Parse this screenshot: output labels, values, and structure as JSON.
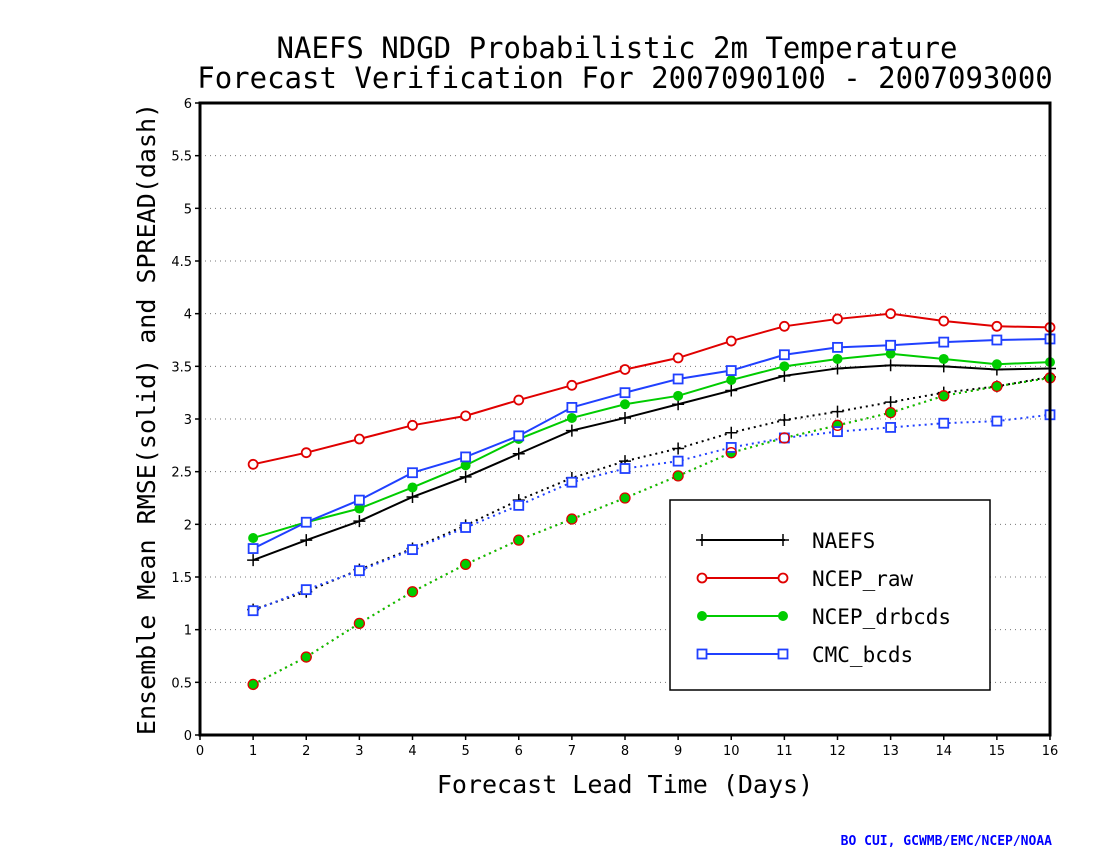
{
  "chart_data": {
    "type": "line",
    "title": "NAEFS NDGD Probabilistic 2m Temperature",
    "subtitle": "Forecast Verification For 2007090100 - 2007093000",
    "xlabel": "Forecast Lead Time (Days)",
    "ylabel": "Ensemble Mean RMSE(solid) and SPREAD(dash)",
    "xlim": [
      0,
      16
    ],
    "ylim": [
      0,
      6
    ],
    "xticks": [
      "0",
      "1",
      "2",
      "3",
      "4",
      "5",
      "6",
      "7",
      "8",
      "9",
      "10",
      "11",
      "12",
      "13",
      "14",
      "15",
      "16"
    ],
    "yticks": [
      "0",
      "0.5",
      "1",
      "1.5",
      "2",
      "2.5",
      "3",
      "3.5",
      "4",
      "4.5",
      "5",
      "5.5",
      "6"
    ],
    "grid": true,
    "legend_position": "lower-right",
    "x": [
      1,
      2,
      3,
      4,
      5,
      6,
      7,
      8,
      9,
      10,
      11,
      12,
      13,
      14,
      15,
      16
    ],
    "series": [
      {
        "name": "NAEFS",
        "color": "#000000",
        "marker": "plus",
        "rmse": [
          1.66,
          1.85,
          2.03,
          2.26,
          2.45,
          2.67,
          2.89,
          3.01,
          3.14,
          3.27,
          3.41,
          3.48,
          3.51,
          3.5,
          3.47,
          3.48
        ],
        "spread": [
          1.19,
          1.36,
          1.57,
          1.77,
          1.99,
          2.23,
          2.44,
          2.6,
          2.72,
          2.87,
          2.99,
          3.07,
          3.16,
          3.25,
          3.31,
          3.4
        ]
      },
      {
        "name": "NCEP_raw",
        "color": "#e00000",
        "marker": "open-circle",
        "rmse": [
          2.57,
          2.68,
          2.81,
          2.94,
          3.03,
          3.18,
          3.32,
          3.47,
          3.58,
          3.74,
          3.88,
          3.95,
          4.0,
          3.93,
          3.88,
          3.87
        ],
        "spread": [
          0.48,
          0.74,
          1.06,
          1.36,
          1.62,
          1.85,
          2.05,
          2.25,
          2.46,
          2.68,
          2.82,
          2.94,
          3.06,
          3.22,
          3.31,
          3.39
        ]
      },
      {
        "name": "NCEP_drbcds",
        "color": "#00cc00",
        "marker": "filled-circle",
        "rmse": [
          1.87,
          2.02,
          2.15,
          2.35,
          2.56,
          2.81,
          3.01,
          3.14,
          3.22,
          3.37,
          3.5,
          3.57,
          3.62,
          3.57,
          3.52,
          3.54
        ],
        "spread": [
          0.48,
          0.74,
          1.06,
          1.36,
          1.62,
          1.85,
          2.05,
          2.25,
          2.46,
          2.68,
          2.82,
          2.94,
          3.06,
          3.22,
          3.31,
          3.39
        ]
      },
      {
        "name": "CMC_bcds",
        "color": "#2040ff",
        "marker": "open-square",
        "rmse": [
          1.77,
          2.02,
          2.23,
          2.49,
          2.64,
          2.84,
          3.11,
          3.25,
          3.38,
          3.46,
          3.61,
          3.68,
          3.7,
          3.73,
          3.75,
          3.76
        ],
        "spread": [
          1.18,
          1.38,
          1.56,
          1.76,
          1.97,
          2.18,
          2.4,
          2.53,
          2.6,
          2.73,
          2.82,
          2.88,
          2.92,
          2.96,
          2.98,
          3.04
        ]
      }
    ],
    "credit": "BO CUI, GCWMB/EMC/NCEP/NOAA"
  }
}
